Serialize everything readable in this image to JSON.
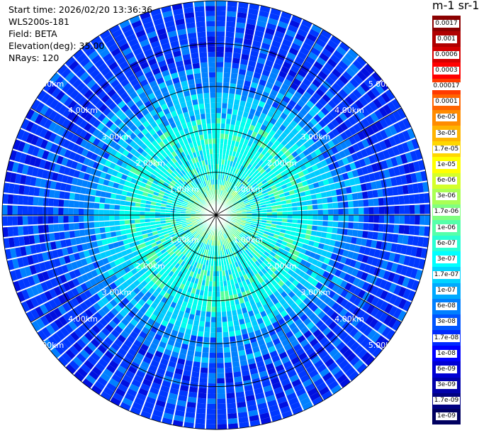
{
  "info": {
    "start_time": "Start time: 2026/02/20 13:36:36",
    "instrument": "WLS200s-181",
    "field": "Field: BETA",
    "elevation": "Elevation(deg): 35.00",
    "nrays": "NRays: 120"
  },
  "colorbar": {
    "units": "m-1 sr-1",
    "labels": [
      "0.0017",
      "0.001",
      "0.0006",
      "0.0003",
      "0.00017",
      "0.0001",
      "6e-05",
      "3e-05",
      "1.7e-05",
      "1e-05",
      "6e-06",
      "3e-06",
      "1.7e-06",
      "1e-06",
      "6e-07",
      "3e-07",
      "1.7e-07",
      "1e-07",
      "6e-08",
      "3e-08",
      "1.7e-08",
      "1e-08",
      "6e-09",
      "3e-09",
      "1.7e-09",
      "1e-09"
    ],
    "colors": [
      "#8b0000",
      "#b00000",
      "#d40000",
      "#ff0000",
      "#ff3a00",
      "#ff6400",
      "#ff8c00",
      "#ffb400",
      "#ffd700",
      "#ffff00",
      "#d4ff2a",
      "#aaff55",
      "#80ff80",
      "#55ffaa",
      "#2affd4",
      "#00ffff",
      "#00d4ff",
      "#00aaff",
      "#0080ff",
      "#0055ff",
      "#002aff",
      "#0000ff",
      "#0000d4",
      "#0000aa",
      "#000080",
      "#000060"
    ]
  },
  "range_labels": [
    "1.00km",
    "2.00km",
    "3.00km",
    "4.00km",
    "5.00km"
  ]
}
